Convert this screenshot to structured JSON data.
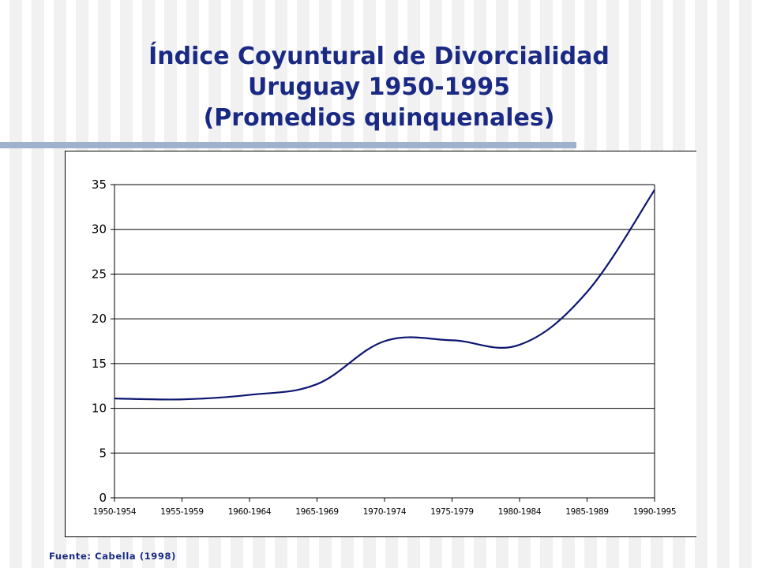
{
  "slide": {
    "title_lines": [
      "Índice Coyuntural de Divorcialidad",
      "Uruguay 1950-1995",
      "(Promedios quinquenales)"
    ],
    "source": "Fuente: Cabella (1998)"
  },
  "chart_data": {
    "type": "line",
    "title": "",
    "xlabel": "",
    "ylabel": "",
    "categories": [
      "1950-1954",
      "1955-1959",
      "1960-1964",
      "1965-1969",
      "1970-1974",
      "1975-1979",
      "1980-1984",
      "1985-1989",
      "1990-1995"
    ],
    "series": [
      {
        "values": [
          11.1,
          11.0,
          11.5,
          12.7,
          17.5,
          17.6,
          17.1,
          23.0,
          34.4
        ]
      }
    ],
    "ylim": [
      0,
      35
    ],
    "yticks": [
      0,
      5,
      10,
      15,
      20,
      25,
      30,
      35
    ],
    "grid": "horizontal",
    "line_color": "#0d1670",
    "smooth": true
  }
}
